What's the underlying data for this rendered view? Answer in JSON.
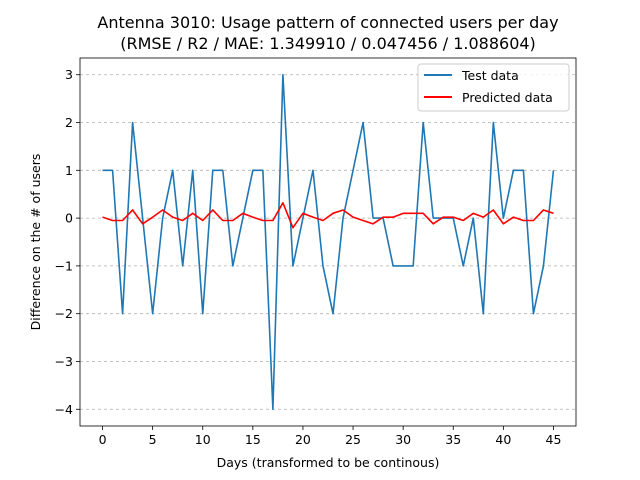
{
  "chart_data": {
    "type": "line",
    "title": "Antenna 3010: Usage pattern of connected users per day",
    "subtitle": "(RMSE / R2 / MAE: 1.349910 / 0.047456 / 1.088604)",
    "xlabel": "Days (transformed to be continous)",
    "ylabel": "Difference on the # of users",
    "xlim": [
      -2.25,
      47.25
    ],
    "ylim": [
      -4.35,
      3.35
    ],
    "x_ticks": [
      0,
      5,
      10,
      15,
      20,
      25,
      30,
      35,
      40,
      45
    ],
    "y_ticks": [
      3,
      2,
      1,
      0,
      -1,
      -2,
      -3,
      -4
    ],
    "y_tick_labels": [
      "3",
      "2",
      "1",
      "0",
      "−1",
      "−2",
      "−3",
      "−4"
    ],
    "grid": "y-dashed",
    "legend_position": "top-right",
    "series": [
      {
        "name": "Test data",
        "color": "#1f77b4",
        "x": [
          0,
          1,
          2,
          3,
          4,
          5,
          6,
          7,
          8,
          9,
          10,
          11,
          12,
          13,
          14,
          15,
          16,
          17,
          18,
          19,
          20,
          21,
          22,
          23,
          24,
          25,
          26,
          27,
          28,
          29,
          30,
          31,
          32,
          33,
          34,
          35,
          36,
          37,
          38,
          39,
          40,
          41,
          42,
          43,
          44,
          45
        ],
        "values": [
          1,
          1,
          -2,
          2,
          0,
          -2,
          0,
          1,
          -1,
          1,
          -2,
          1,
          1,
          -1,
          0,
          1,
          1,
          -4,
          3,
          -1,
          0,
          1,
          -1,
          -2,
          0,
          1,
          2,
          0,
          0,
          -1,
          -1,
          -1,
          2,
          0,
          0,
          0,
          -1,
          0,
          -2,
          2,
          0,
          1,
          1,
          -2,
          -1,
          1
        ]
      },
      {
        "name": "Predicted data",
        "color": "#ff0000",
        "x": [
          0,
          1,
          2,
          3,
          4,
          5,
          6,
          7,
          8,
          9,
          10,
          11,
          12,
          13,
          14,
          15,
          16,
          17,
          18,
          19,
          20,
          21,
          22,
          23,
          24,
          25,
          26,
          27,
          28,
          29,
          30,
          31,
          32,
          33,
          34,
          35,
          36,
          37,
          38,
          39,
          40,
          41,
          42,
          43,
          44,
          45
        ],
        "values": [
          0.02,
          -0.05,
          -0.05,
          0.17,
          -0.12,
          0.02,
          0.17,
          0.02,
          -0.05,
          0.1,
          -0.05,
          0.17,
          -0.05,
          -0.05,
          0.1,
          0.02,
          -0.05,
          -0.05,
          0.32,
          -0.2,
          0.1,
          0.02,
          -0.05,
          0.1,
          0.17,
          0.02,
          -0.05,
          -0.12,
          0.02,
          0.02,
          0.1,
          0.1,
          0.1,
          -0.12,
          0.02,
          0.02,
          -0.05,
          0.1,
          0.02,
          0.17,
          -0.12,
          0.02,
          -0.05,
          -0.05,
          0.17,
          0.1
        ]
      }
    ]
  }
}
